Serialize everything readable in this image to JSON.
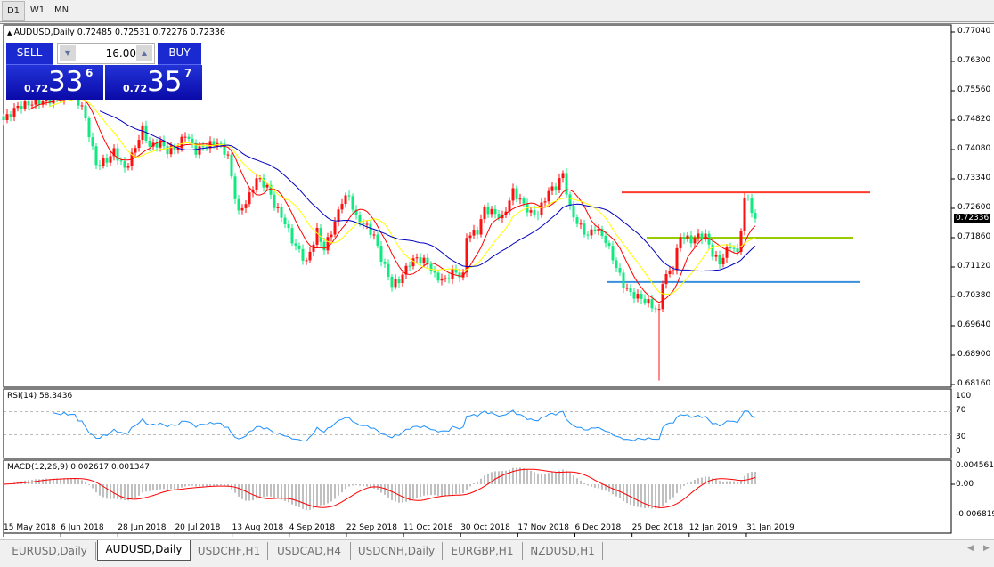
{
  "toolbar": {
    "timeframes": [
      "D1",
      "W1",
      "MN"
    ]
  },
  "chart": {
    "header": "AUDUSD,Daily  0.72485 0.72531 0.72276 0.72336",
    "trade": {
      "sell": "SELL",
      "buy": "BUY",
      "lot": "16.00",
      "sell_prefix": "0.72",
      "sell_big": "33",
      "sell_sup": "6",
      "buy_prefix": "0.72",
      "buy_big": "35",
      "buy_sup": "7"
    },
    "current_price": "0.72336",
    "price_ticks": [
      "0.77040",
      "0.76300",
      "0.75560",
      "0.74820",
      "0.74080",
      "0.73340",
      "0.72600",
      "0.71860",
      "0.71120",
      "0.70380",
      "0.69640",
      "0.68900",
      "0.68160"
    ],
    "date_labels": [
      "15 May 2018",
      "6 Jun 2018",
      "28 Jun 2018",
      "20 Jul 2018",
      "13 Aug 2018",
      "4 Sep 2018",
      "22 Sep 2018",
      "11 Oct 2018",
      "30 Oct 2018",
      "17 Nov 2018",
      "6 Dec 2018",
      "25 Dec 2018",
      "12 Jan 2019",
      "31 Jan 2019"
    ],
    "colors": {
      "bull": "#ff1010",
      "bear": "#10e880",
      "ma_fast": "#ff0000",
      "ma_mid": "#ffff00",
      "ma_slow": "#0000c0",
      "rsi": "#1e90ff",
      "macd_hist": "#c0c0c0",
      "macd_signal": "#ff0000"
    },
    "levels": [
      {
        "price": 0.73,
        "color": "#ff3b30"
      },
      {
        "price": 0.7186,
        "color": "#99cc00"
      },
      {
        "price": 0.7074,
        "color": "#3a8fdc"
      }
    ],
    "close_anchors": [
      [
        0,
        0.7482
      ],
      [
        4,
        0.7516
      ],
      [
        9,
        0.7527
      ],
      [
        14,
        0.7534
      ],
      [
        19,
        0.7549
      ],
      [
        22,
        0.7516
      ],
      [
        24,
        0.7448
      ],
      [
        26,
        0.737
      ],
      [
        29,
        0.7381
      ],
      [
        31,
        0.7404
      ],
      [
        34,
        0.7359
      ],
      [
        36,
        0.7392
      ],
      [
        39,
        0.746
      ],
      [
        41,
        0.7415
      ],
      [
        44,
        0.7426
      ],
      [
        46,
        0.7404
      ],
      [
        49,
        0.7415
      ],
      [
        51,
        0.7448
      ],
      [
        54,
        0.7404
      ],
      [
        56,
        0.7415
      ],
      [
        60,
        0.7426
      ],
      [
        63,
        0.7392
      ],
      [
        64,
        0.7336
      ],
      [
        66,
        0.7247
      ],
      [
        69,
        0.7291
      ],
      [
        71,
        0.7336
      ],
      [
        74,
        0.7314
      ],
      [
        76,
        0.7269
      ],
      [
        79,
        0.7224
      ],
      [
        81,
        0.7179
      ],
      [
        85,
        0.7123
      ],
      [
        88,
        0.7202
      ],
      [
        90,
        0.7157
      ],
      [
        93,
        0.7224
      ],
      [
        95,
        0.728
      ],
      [
        97,
        0.7291
      ],
      [
        99,
        0.7235
      ],
      [
        102,
        0.7213
      ],
      [
        104,
        0.719
      ],
      [
        106,
        0.7134
      ],
      [
        109,
        0.7067
      ],
      [
        111,
        0.7078
      ],
      [
        114,
        0.7123
      ],
      [
        116,
        0.7134
      ],
      [
        119,
        0.7123
      ],
      [
        121,
        0.7089
      ],
      [
        124,
        0.7078
      ],
      [
        126,
        0.7101
      ],
      [
        129,
        0.7089
      ],
      [
        130,
        0.719
      ],
      [
        133,
        0.7202
      ],
      [
        135,
        0.7258
      ],
      [
        138,
        0.7247
      ],
      [
        140,
        0.7235
      ],
      [
        143,
        0.7303
      ],
      [
        145,
        0.728
      ],
      [
        148,
        0.7247
      ],
      [
        150,
        0.7247
      ],
      [
        153,
        0.7303
      ],
      [
        155,
        0.7314
      ],
      [
        157,
        0.7347
      ],
      [
        159,
        0.7258
      ],
      [
        161,
        0.7224
      ],
      [
        164,
        0.719
      ],
      [
        166,
        0.7213
      ],
      [
        169,
        0.7179
      ],
      [
        171,
        0.7134
      ],
      [
        174,
        0.7067
      ],
      [
        176,
        0.7045
      ],
      [
        179,
        0.7033
      ],
      [
        181,
        0.7022
      ],
      [
        184,
        0.6999
      ],
      [
        185,
        0.7078
      ],
      [
        188,
        0.7112
      ],
      [
        190,
        0.719
      ],
      [
        193,
        0.7179
      ],
      [
        195,
        0.719
      ],
      [
        197,
        0.719
      ],
      [
        199,
        0.7145
      ],
      [
        201,
        0.7123
      ],
      [
        204,
        0.7168
      ],
      [
        206,
        0.7145
      ],
      [
        208,
        0.728
      ],
      [
        209,
        0.7285
      ],
      [
        210,
        0.7255
      ],
      [
        211,
        0.72336
      ]
    ],
    "flash_crash_low": {
      "bar": 184,
      "price": 0.6826
    }
  },
  "rsi": {
    "label": "RSI(14) 58.3436",
    "ticks": [
      "100",
      "70",
      "30",
      "0"
    ]
  },
  "macd": {
    "label": "MACD(12,26,9) 0.002617 0.001347",
    "ticks": [
      "0.004561",
      "0.00",
      "-0.006819"
    ]
  },
  "tabs": [
    "EURUSD,Daily",
    "AUDUSD,Daily",
    "USDCHF,H1",
    "USDCAD,H4",
    "USDCNH,Daily",
    "EURGBP,H1",
    "NZDUSD,H1"
  ],
  "active_tab": 1
}
